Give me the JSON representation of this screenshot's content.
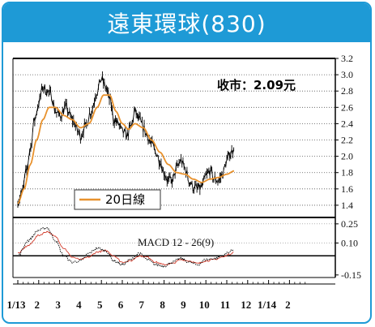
{
  "chart_data": {
    "type": "line",
    "title": "遠東環球(830)",
    "close_label": "收市：2.09元",
    "legend": {
      "ma_label": "20日線"
    },
    "colors": {
      "title_bg": "#1e9ad6",
      "price": "#000000",
      "ma": "#e8922e",
      "macd": "#000000",
      "signal": "#d23a2a"
    },
    "price_axis": {
      "ticks": [
        "3.2",
        "3.0",
        "2.8",
        "2.6",
        "2.4",
        "2.2",
        "2.0",
        "1.8",
        "1.6",
        "1.4"
      ],
      "ylim": [
        1.25,
        3.2
      ]
    },
    "macd_axis": {
      "label": "MACD 12 - 26(9)",
      "ticks": [
        "0.25",
        "0.10",
        "-0.15"
      ],
      "ylim": [
        -0.17,
        0.3
      ]
    },
    "x_ticks": [
      "1/13",
      "2",
      "3",
      "4",
      "5",
      "6",
      "7",
      "8",
      "9",
      "10",
      "11",
      "12",
      "1/14",
      "2"
    ],
    "price_series": {
      "name": "Price",
      "anchors": [
        {
          "m": 0.0,
          "v": 1.45
        },
        {
          "m": 0.2,
          "v": 1.55
        },
        {
          "m": 0.4,
          "v": 1.8
        },
        {
          "m": 0.6,
          "v": 2.1
        },
        {
          "m": 0.8,
          "v": 2.45
        },
        {
          "m": 1.0,
          "v": 2.65
        },
        {
          "m": 1.2,
          "v": 2.85
        },
        {
          "m": 1.4,
          "v": 2.8
        },
        {
          "m": 1.6,
          "v": 2.75
        },
        {
          "m": 1.8,
          "v": 2.55
        },
        {
          "m": 2.0,
          "v": 2.5
        },
        {
          "m": 2.3,
          "v": 2.6
        },
        {
          "m": 2.6,
          "v": 2.45
        },
        {
          "m": 2.9,
          "v": 2.3
        },
        {
          "m": 3.0,
          "v": 2.25
        },
        {
          "m": 3.2,
          "v": 2.35
        },
        {
          "m": 3.5,
          "v": 2.55
        },
        {
          "m": 3.8,
          "v": 2.8
        },
        {
          "m": 4.0,
          "v": 2.95
        },
        {
          "m": 4.2,
          "v": 2.85
        },
        {
          "m": 4.4,
          "v": 2.7
        },
        {
          "m": 4.6,
          "v": 2.45
        },
        {
          "m": 4.8,
          "v": 2.4
        },
        {
          "m": 5.0,
          "v": 2.3
        },
        {
          "m": 5.2,
          "v": 2.25
        },
        {
          "m": 5.4,
          "v": 2.35
        },
        {
          "m": 5.6,
          "v": 2.55
        },
        {
          "m": 5.8,
          "v": 2.45
        },
        {
          "m": 6.0,
          "v": 2.35
        },
        {
          "m": 6.2,
          "v": 2.25
        },
        {
          "m": 6.4,
          "v": 2.15
        },
        {
          "m": 6.6,
          "v": 2.05
        },
        {
          "m": 6.8,
          "v": 1.95
        },
        {
          "m": 7.0,
          "v": 1.8
        },
        {
          "m": 7.2,
          "v": 1.7
        },
        {
          "m": 7.4,
          "v": 1.7
        },
        {
          "m": 7.6,
          "v": 1.85
        },
        {
          "m": 7.8,
          "v": 1.95
        },
        {
          "m": 8.0,
          "v": 1.85
        },
        {
          "m": 8.2,
          "v": 1.7
        },
        {
          "m": 8.4,
          "v": 1.62
        },
        {
          "m": 8.6,
          "v": 1.6
        },
        {
          "m": 8.8,
          "v": 1.62
        },
        {
          "m": 9.0,
          "v": 1.75
        },
        {
          "m": 9.2,
          "v": 1.82
        },
        {
          "m": 9.4,
          "v": 1.72
        },
        {
          "m": 9.6,
          "v": 1.7
        },
        {
          "m": 9.8,
          "v": 1.78
        },
        {
          "m": 10.0,
          "v": 1.95
        },
        {
          "m": 10.2,
          "v": 2.05
        },
        {
          "m": 10.35,
          "v": 2.09
        }
      ]
    },
    "ma_series": {
      "name": "20日線",
      "anchors": [
        {
          "m": 0.0,
          "v": 1.42
        },
        {
          "m": 0.3,
          "v": 1.6
        },
        {
          "m": 0.6,
          "v": 1.9
        },
        {
          "m": 0.9,
          "v": 2.2
        },
        {
          "m": 1.2,
          "v": 2.45
        },
        {
          "m": 1.5,
          "v": 2.6
        },
        {
          "m": 1.8,
          "v": 2.6
        },
        {
          "m": 2.2,
          "v": 2.5
        },
        {
          "m": 2.6,
          "v": 2.45
        },
        {
          "m": 3.0,
          "v": 2.35
        },
        {
          "m": 3.4,
          "v": 2.4
        },
        {
          "m": 3.8,
          "v": 2.6
        },
        {
          "m": 4.1,
          "v": 2.75
        },
        {
          "m": 4.4,
          "v": 2.75
        },
        {
          "m": 4.7,
          "v": 2.55
        },
        {
          "m": 5.0,
          "v": 2.4
        },
        {
          "m": 5.3,
          "v": 2.33
        },
        {
          "m": 5.6,
          "v": 2.4
        },
        {
          "m": 6.0,
          "v": 2.35
        },
        {
          "m": 6.4,
          "v": 2.2
        },
        {
          "m": 6.8,
          "v": 2.05
        },
        {
          "m": 7.2,
          "v": 1.9
        },
        {
          "m": 7.6,
          "v": 1.8
        },
        {
          "m": 8.0,
          "v": 1.78
        },
        {
          "m": 8.4,
          "v": 1.72
        },
        {
          "m": 8.8,
          "v": 1.68
        },
        {
          "m": 9.2,
          "v": 1.72
        },
        {
          "m": 9.6,
          "v": 1.74
        },
        {
          "m": 10.0,
          "v": 1.78
        },
        {
          "m": 10.35,
          "v": 1.82
        }
      ]
    },
    "macd_series": {
      "name": "MACD",
      "anchors": [
        {
          "m": 0.0,
          "v": 0.0
        },
        {
          "m": 0.5,
          "v": 0.12
        },
        {
          "m": 1.0,
          "v": 0.2
        },
        {
          "m": 1.4,
          "v": 0.22
        },
        {
          "m": 1.8,
          "v": 0.12
        },
        {
          "m": 2.2,
          "v": 0.0
        },
        {
          "m": 2.6,
          "v": -0.05
        },
        {
          "m": 3.0,
          "v": -0.04
        },
        {
          "m": 3.4,
          "v": 0.02
        },
        {
          "m": 3.8,
          "v": 0.06
        },
        {
          "m": 4.2,
          "v": 0.04
        },
        {
          "m": 4.6,
          "v": -0.04
        },
        {
          "m": 5.0,
          "v": -0.07
        },
        {
          "m": 5.4,
          "v": -0.03
        },
        {
          "m": 5.8,
          "v": 0.02
        },
        {
          "m": 6.2,
          "v": -0.03
        },
        {
          "m": 6.6,
          "v": -0.07
        },
        {
          "m": 7.0,
          "v": -0.08
        },
        {
          "m": 7.4,
          "v": -0.05
        },
        {
          "m": 7.8,
          "v": -0.02
        },
        {
          "m": 8.2,
          "v": -0.05
        },
        {
          "m": 8.6,
          "v": -0.07
        },
        {
          "m": 9.0,
          "v": -0.03
        },
        {
          "m": 9.4,
          "v": -0.02
        },
        {
          "m": 9.8,
          "v": 0.0
        },
        {
          "m": 10.1,
          "v": 0.03
        },
        {
          "m": 10.35,
          "v": 0.05
        }
      ]
    },
    "signal_series": {
      "name": "Signal",
      "anchors": [
        {
          "m": 0.0,
          "v": 0.02
        },
        {
          "m": 0.5,
          "v": 0.08
        },
        {
          "m": 1.0,
          "v": 0.16
        },
        {
          "m": 1.4,
          "v": 0.19
        },
        {
          "m": 1.8,
          "v": 0.15
        },
        {
          "m": 2.2,
          "v": 0.06
        },
        {
          "m": 2.6,
          "v": -0.01
        },
        {
          "m": 3.0,
          "v": -0.03
        },
        {
          "m": 3.4,
          "v": -0.01
        },
        {
          "m": 3.8,
          "v": 0.03
        },
        {
          "m": 4.2,
          "v": 0.04
        },
        {
          "m": 4.6,
          "v": 0.0
        },
        {
          "m": 5.0,
          "v": -0.05
        },
        {
          "m": 5.4,
          "v": -0.04
        },
        {
          "m": 5.8,
          "v": 0.0
        },
        {
          "m": 6.2,
          "v": -0.01
        },
        {
          "m": 6.6,
          "v": -0.05
        },
        {
          "m": 7.0,
          "v": -0.07
        },
        {
          "m": 7.4,
          "v": -0.06
        },
        {
          "m": 7.8,
          "v": -0.03
        },
        {
          "m": 8.2,
          "v": -0.04
        },
        {
          "m": 8.6,
          "v": -0.06
        },
        {
          "m": 9.0,
          "v": -0.04
        },
        {
          "m": 9.4,
          "v": -0.03
        },
        {
          "m": 9.8,
          "v": -0.01
        },
        {
          "m": 10.1,
          "v": 0.01
        },
        {
          "m": 10.35,
          "v": 0.03
        }
      ]
    }
  }
}
